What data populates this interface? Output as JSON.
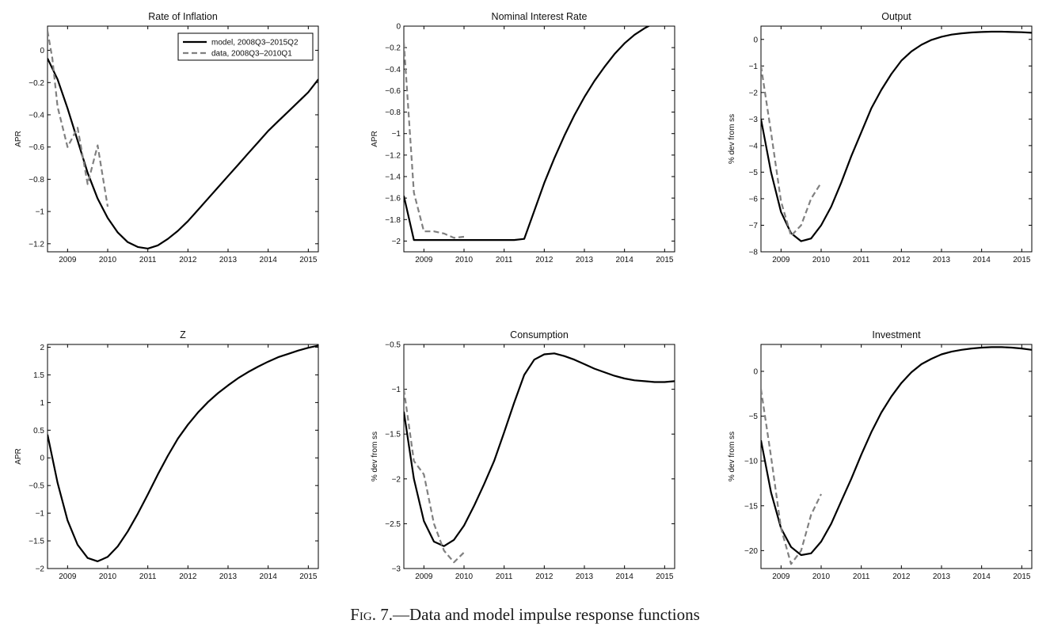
{
  "caption": {
    "label": "Fig. 7.",
    "text": "—Data and model impulse response functions"
  },
  "colors": {
    "model": "#000000",
    "data": "#808080",
    "axis": "#000000"
  },
  "chart_data": [
    {
      "type": "line",
      "title": "Rate of Inflation",
      "ylabel": "APR",
      "xlim": [
        2008.5,
        2015.25
      ],
      "ylim": [
        -1.25,
        0.15
      ],
      "yticks": [
        0,
        -0.2,
        -0.4,
        -0.6,
        -0.8,
        -1,
        -1.2
      ],
      "xticks": [
        2009,
        2010,
        2011,
        2012,
        2013,
        2014,
        2015
      ],
      "legend": {
        "position": "top-right",
        "entries": [
          "model, 2008Q3–2015Q2",
          "data, 2008Q3–2010Q1"
        ]
      },
      "series": [
        {
          "name": "model, 2008Q3–2015Q2",
          "style": "solid",
          "x": [
            2008.5,
            2008.75,
            2009,
            2009.25,
            2009.5,
            2009.75,
            2010,
            2010.25,
            2010.5,
            2010.75,
            2011,
            2011.25,
            2011.5,
            2011.75,
            2012,
            2012.25,
            2012.5,
            2012.75,
            2013,
            2013.25,
            2013.5,
            2013.75,
            2014,
            2014.25,
            2014.5,
            2014.75,
            2015,
            2015.25
          ],
          "y": [
            -0.05,
            -0.18,
            -0.36,
            -0.56,
            -0.76,
            -0.92,
            -1.04,
            -1.13,
            -1.19,
            -1.22,
            -1.23,
            -1.21,
            -1.17,
            -1.12,
            -1.06,
            -0.99,
            -0.92,
            -0.85,
            -0.78,
            -0.71,
            -0.64,
            -0.57,
            -0.5,
            -0.44,
            -0.38,
            -0.32,
            -0.26,
            -0.18
          ]
        },
        {
          "name": "data, 2008Q3–2010Q1",
          "style": "dashed",
          "x": [
            2008.5,
            2008.62,
            2008.75,
            2009,
            2009.25,
            2009.5,
            2009.75,
            2010
          ],
          "y": [
            0.12,
            -0.05,
            -0.35,
            -0.6,
            -0.48,
            -0.83,
            -0.59,
            -0.97
          ]
        }
      ]
    },
    {
      "type": "line",
      "title": "Nominal Interest Rate",
      "ylabel": "APR",
      "xlim": [
        2008.5,
        2015.25
      ],
      "ylim": [
        -2.1,
        0
      ],
      "yticks": [
        0,
        -0.2,
        -0.4,
        -0.6,
        -0.8,
        -1,
        -1.2,
        -1.4,
        -1.6,
        -1.8,
        -2
      ],
      "xticks": [
        2009,
        2010,
        2011,
        2012,
        2013,
        2014,
        2015
      ],
      "series": [
        {
          "style": "solid",
          "x": [
            2008.5,
            2008.75,
            2009,
            2009.25,
            2009.5,
            2009.75,
            2010,
            2010.25,
            2010.5,
            2010.75,
            2011,
            2011.25,
            2011.5,
            2011.75,
            2012,
            2012.25,
            2012.5,
            2012.75,
            2013,
            2013.25,
            2013.5,
            2013.75,
            2014,
            2014.25,
            2014.5,
            2014.75,
            2015,
            2015.25
          ],
          "y": [
            -1.58,
            -1.99,
            -1.99,
            -1.99,
            -1.99,
            -1.99,
            -1.99,
            -1.99,
            -1.99,
            -1.99,
            -1.99,
            -1.99,
            -1.98,
            -1.72,
            -1.46,
            -1.23,
            -1.02,
            -0.83,
            -0.66,
            -0.51,
            -0.38,
            -0.26,
            -0.16,
            -0.08,
            -0.02,
            0.03,
            0.07,
            0.1
          ]
        },
        {
          "style": "dashed",
          "x": [
            2008.5,
            2008.75,
            2009,
            2009.25,
            2009.5,
            2009.75,
            2010
          ],
          "y": [
            -0.15,
            -1.55,
            -1.91,
            -1.91,
            -1.93,
            -1.97,
            -1.96
          ]
        }
      ]
    },
    {
      "type": "line",
      "title": "Output",
      "ylabel": "% dev from ss",
      "xlim": [
        2008.5,
        2015.25
      ],
      "ylim": [
        -8,
        0.5
      ],
      "yticks": [
        0,
        -1,
        -2,
        -3,
        -4,
        -5,
        -6,
        -7,
        -8
      ],
      "xticks": [
        2009,
        2010,
        2011,
        2012,
        2013,
        2014,
        2015
      ],
      "series": [
        {
          "style": "solid",
          "x": [
            2008.5,
            2008.75,
            2009,
            2009.25,
            2009.5,
            2009.75,
            2010,
            2010.25,
            2010.5,
            2010.75,
            2011,
            2011.25,
            2011.5,
            2011.75,
            2012,
            2012.25,
            2012.5,
            2012.75,
            2013,
            2013.25,
            2013.5,
            2013.75,
            2014,
            2014.25,
            2014.5,
            2014.75,
            2015,
            2015.25
          ],
          "y": [
            -3.0,
            -5.0,
            -6.5,
            -7.3,
            -7.6,
            -7.5,
            -7.0,
            -6.3,
            -5.4,
            -4.4,
            -3.5,
            -2.6,
            -1.9,
            -1.3,
            -0.8,
            -0.45,
            -0.2,
            -0.02,
            0.1,
            0.18,
            0.23,
            0.26,
            0.28,
            0.29,
            0.29,
            0.28,
            0.27,
            0.25
          ]
        },
        {
          "style": "dashed",
          "x": [
            2008.5,
            2008.75,
            2009,
            2009.25,
            2009.5,
            2009.75,
            2010
          ],
          "y": [
            -1.0,
            -3.5,
            -6.1,
            -7.4,
            -7.0,
            -6.0,
            -5.4
          ]
        }
      ]
    },
    {
      "type": "line",
      "title": "Z",
      "ylabel": "APR",
      "xlim": [
        2008.5,
        2015.25
      ],
      "ylim": [
        -2,
        2.05
      ],
      "yticks": [
        2,
        1.5,
        1,
        0.5,
        0,
        -0.5,
        -1,
        -1.5,
        -2
      ],
      "xticks": [
        2009,
        2010,
        2011,
        2012,
        2013,
        2014,
        2015
      ],
      "series": [
        {
          "style": "solid",
          "x": [
            2008.5,
            2008.75,
            2009,
            2009.25,
            2009.5,
            2009.75,
            2010,
            2010.25,
            2010.5,
            2010.75,
            2011,
            2011.25,
            2011.5,
            2011.75,
            2012,
            2012.25,
            2012.5,
            2012.75,
            2013,
            2013.25,
            2013.5,
            2013.75,
            2014,
            2014.25,
            2014.5,
            2014.75,
            2015,
            2015.25
          ],
          "y": [
            0.42,
            -0.45,
            -1.13,
            -1.57,
            -1.81,
            -1.87,
            -1.79,
            -1.6,
            -1.33,
            -1.01,
            -0.66,
            -0.3,
            0.04,
            0.35,
            0.6,
            0.82,
            1.01,
            1.17,
            1.31,
            1.44,
            1.55,
            1.65,
            1.74,
            1.82,
            1.88,
            1.94,
            1.99,
            2.03
          ]
        }
      ]
    },
    {
      "type": "line",
      "title": "Consumption",
      "ylabel": "% dev from ss",
      "xlim": [
        2008.5,
        2015.25
      ],
      "ylim": [
        -3,
        -0.5
      ],
      "yticks": [
        -0.5,
        -1,
        -1.5,
        -2,
        -2.5,
        -3
      ],
      "xticks": [
        2009,
        2010,
        2011,
        2012,
        2013,
        2014,
        2015
      ],
      "series": [
        {
          "style": "solid",
          "x": [
            2008.5,
            2008.75,
            2009,
            2009.25,
            2009.5,
            2009.75,
            2010,
            2010.25,
            2010.5,
            2010.75,
            2011,
            2011.25,
            2011.5,
            2011.75,
            2012,
            2012.25,
            2012.5,
            2012.75,
            2013,
            2013.25,
            2013.5,
            2013.75,
            2014,
            2014.25,
            2014.5,
            2014.75,
            2015,
            2015.25
          ],
          "y": [
            -1.25,
            -2.0,
            -2.47,
            -2.7,
            -2.75,
            -2.68,
            -2.52,
            -2.3,
            -2.06,
            -1.8,
            -1.48,
            -1.15,
            -0.84,
            -0.67,
            -0.61,
            -0.6,
            -0.63,
            -0.67,
            -0.72,
            -0.77,
            -0.81,
            -0.85,
            -0.88,
            -0.9,
            -0.91,
            -0.92,
            -0.92,
            -0.91
          ]
        },
        {
          "style": "dashed",
          "x": [
            2008.5,
            2008.75,
            2009,
            2009.25,
            2009.5,
            2009.75,
            2010
          ],
          "y": [
            -1.0,
            -1.8,
            -1.95,
            -2.5,
            -2.8,
            -2.93,
            -2.82
          ]
        }
      ]
    },
    {
      "type": "line",
      "title": "Investment",
      "ylabel": "% dev from ss",
      "xlim": [
        2008.5,
        2015.25
      ],
      "ylim": [
        -22,
        3
      ],
      "yticks": [
        0,
        -5,
        -10,
        -15,
        -20
      ],
      "xticks": [
        2009,
        2010,
        2011,
        2012,
        2013,
        2014,
        2015
      ],
      "series": [
        {
          "style": "solid",
          "x": [
            2008.5,
            2008.75,
            2009,
            2009.25,
            2009.5,
            2009.75,
            2010,
            2010.25,
            2010.5,
            2010.75,
            2011,
            2011.25,
            2011.5,
            2011.75,
            2012,
            2012.25,
            2012.5,
            2012.75,
            2013,
            2013.25,
            2013.5,
            2013.75,
            2014,
            2014.25,
            2014.5,
            2014.75,
            2015,
            2015.25
          ],
          "y": [
            -7.7,
            -13.5,
            -17.5,
            -19.6,
            -20.5,
            -20.3,
            -19.0,
            -17.0,
            -14.5,
            -12.0,
            -9.3,
            -6.8,
            -4.6,
            -2.8,
            -1.3,
            -0.1,
            0.8,
            1.4,
            1.9,
            2.2,
            2.4,
            2.55,
            2.65,
            2.7,
            2.7,
            2.65,
            2.55,
            2.4
          ]
        },
        {
          "style": "dashed",
          "x": [
            2008.5,
            2008.75,
            2009,
            2009.25,
            2009.5,
            2009.75,
            2010
          ],
          "y": [
            -2.0,
            -9.5,
            -17.5,
            -21.5,
            -20.0,
            -16.0,
            -13.7
          ]
        }
      ]
    }
  ]
}
